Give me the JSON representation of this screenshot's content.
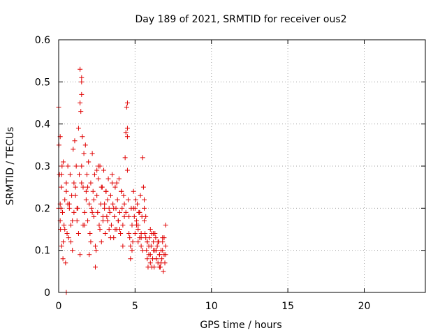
{
  "chart_data": {
    "type": "scatter",
    "title": "Day 189 of 2021, SRMTID for receiver ous2",
    "xlabel": "GPS time / hours",
    "ylabel": "SRMTID / TECUs",
    "xlim": [
      0,
      24
    ],
    "ylim": [
      0,
      0.6
    ],
    "x_ticks": [
      0,
      5,
      10,
      15,
      20
    ],
    "x_tick_labels": [
      "0",
      "5",
      "10",
      "15",
      "20"
    ],
    "y_ticks": [
      0,
      0.1,
      0.2,
      0.3,
      0.4,
      0.5,
      0.6
    ],
    "y_tick_labels": [
      "0",
      "0.1",
      "0.2",
      "0.3",
      "0.4",
      "0.5",
      "0.6"
    ],
    "grid": true,
    "marker": "+",
    "color": "#e00000",
    "series": [
      {
        "name": "SRMTID",
        "x": [
          0.0,
          0.02,
          0.05,
          0.1,
          0.1,
          0.12,
          0.15,
          0.18,
          0.2,
          0.22,
          0.25,
          0.28,
          0.3,
          0.35,
          0.4,
          0.45,
          0.5,
          0.55,
          0.6,
          0.65,
          0.7,
          0.75,
          0.8,
          0.85,
          0.9,
          0.95,
          1.0,
          1.05,
          1.1,
          1.15,
          1.2,
          1.25,
          1.3,
          1.35,
          1.4,
          1.4,
          1.45,
          1.5,
          1.5,
          1.55,
          1.6,
          1.65,
          1.7,
          1.75,
          1.8,
          1.85,
          1.9,
          1.95,
          2.0,
          2.05,
          2.1,
          2.15,
          2.2,
          2.25,
          2.3,
          2.35,
          2.4,
          2.45,
          2.5,
          2.55,
          2.6,
          2.65,
          2.7,
          2.75,
          2.8,
          2.85,
          2.9,
          2.95,
          3.0,
          3.05,
          3.1,
          3.15,
          3.2,
          3.25,
          3.3,
          3.35,
          3.4,
          3.45,
          3.5,
          3.55,
          3.6,
          3.65,
          3.7,
          3.75,
          3.8,
          3.85,
          3.9,
          3.95,
          4.0,
          4.05,
          4.1,
          4.15,
          4.2,
          4.25,
          4.3,
          4.35,
          4.4,
          4.45,
          4.5,
          4.5,
          4.55,
          4.6,
          4.65,
          4.7,
          4.75,
          4.8,
          4.85,
          4.9,
          4.95,
          5.0,
          5.05,
          5.1,
          5.15,
          5.2,
          5.25,
          5.3,
          5.35,
          5.4,
          5.45,
          5.5,
          5.55,
          5.6,
          5.65,
          5.7,
          5.75,
          5.8,
          5.85,
          5.9,
          5.95,
          6.0,
          6.05,
          6.1,
          6.15,
          6.2,
          6.25,
          6.3,
          6.35,
          6.4,
          6.45,
          6.5,
          6.55,
          6.6,
          6.65,
          6.7,
          6.75,
          6.8,
          6.85,
          6.9,
          6.95,
          7.0,
          7.0,
          6.9,
          6.8,
          6.7,
          6.6,
          6.5,
          6.4,
          6.3,
          6.2,
          6.1,
          6.0,
          5.9,
          5.8,
          5.7,
          5.6,
          5.5,
          5.4,
          5.3,
          5.2,
          5.1,
          4.9,
          4.7,
          4.3,
          4.1,
          3.9,
          3.7,
          3.5,
          3.3,
          3.1,
          2.9,
          2.7,
          2.5,
          2.3,
          2.1,
          1.9,
          1.7,
          1.5,
          1.3,
          1.1,
          0.9,
          0.7,
          0.5,
          0.3,
          0.1,
          0.0,
          0.2,
          0.4,
          0.6,
          0.8,
          1.0,
          1.2,
          1.4,
          1.6,
          1.8,
          2.0,
          2.2,
          2.4,
          2.6,
          2.8,
          3.0,
          3.2,
          3.4,
          3.6,
          3.8,
          4.0,
          4.2,
          4.4,
          4.6,
          4.8,
          5.0,
          5.2,
          5.4,
          5.6,
          5.8,
          6.0,
          6.2,
          6.4,
          6.6,
          6.8,
          7.0,
          1.5,
          1.5,
          4.5,
          4.5,
          0.5
        ],
        "y": [
          0.44,
          0.35,
          0.28,
          0.21,
          0.37,
          0.15,
          0.2,
          0.25,
          0.11,
          0.3,
          0.19,
          0.08,
          0.31,
          0.16,
          0.22,
          0.07,
          0.26,
          0.14,
          0.3,
          0.13,
          0.21,
          0.28,
          0.16,
          0.23,
          0.1,
          0.34,
          0.19,
          0.36,
          0.25,
          0.3,
          0.17,
          0.2,
          0.39,
          0.28,
          0.45,
          0.53,
          0.43,
          0.5,
          0.3,
          0.37,
          0.25,
          0.33,
          0.19,
          0.35,
          0.22,
          0.28,
          0.17,
          0.31,
          0.21,
          0.14,
          0.26,
          0.2,
          0.33,
          0.24,
          0.18,
          0.28,
          0.06,
          0.1,
          0.23,
          0.19,
          0.27,
          0.16,
          0.3,
          0.21,
          0.12,
          0.25,
          0.17,
          0.29,
          0.2,
          0.14,
          0.24,
          0.18,
          0.22,
          0.27,
          0.15,
          0.19,
          0.23,
          0.16,
          0.28,
          0.21,
          0.13,
          0.18,
          0.25,
          0.2,
          0.15,
          0.22,
          0.17,
          0.27,
          0.19,
          0.14,
          0.24,
          0.2,
          0.16,
          0.23,
          0.18,
          0.32,
          0.38,
          0.44,
          0.29,
          0.37,
          0.22,
          0.18,
          0.13,
          0.08,
          0.2,
          0.16,
          0.12,
          0.24,
          0.18,
          0.14,
          0.22,
          0.17,
          0.21,
          0.15,
          0.19,
          0.13,
          0.23,
          0.11,
          0.18,
          0.32,
          0.25,
          0.2,
          0.14,
          0.18,
          0.1,
          0.12,
          0.06,
          0.09,
          0.13,
          0.07,
          0.11,
          0.14,
          0.08,
          0.12,
          0.06,
          0.1,
          0.13,
          0.08,
          0.11,
          0.07,
          0.12,
          0.09,
          0.06,
          0.1,
          0.08,
          0.12,
          0.05,
          0.09,
          0.07,
          0.11,
          0.16,
          0.13,
          0.1,
          0.07,
          0.09,
          0.12,
          0.08,
          0.14,
          0.1,
          0.06,
          0.15,
          0.11,
          0.08,
          0.13,
          0.17,
          0.1,
          0.14,
          0.19,
          0.12,
          0.16,
          0.2,
          0.11,
          0.21,
          0.24,
          0.17,
          0.15,
          0.26,
          0.2,
          0.24,
          0.18,
          0.15,
          0.29,
          0.22,
          0.12,
          0.25,
          0.16,
          0.26,
          0.14,
          0.23,
          0.17,
          0.2,
          0.24,
          0.12,
          0.17,
          0.2,
          0.28,
          0.15,
          0.21,
          0.12,
          0.26,
          0.2,
          0.09,
          0.16,
          0.24,
          0.09,
          0.19,
          0.11,
          0.3,
          0.25,
          0.21,
          0.17,
          0.13,
          0.2,
          0.26,
          0.15,
          0.11,
          0.19,
          0.14,
          0.1,
          0.2,
          0.16,
          0.13,
          0.22,
          0.12,
          0.09,
          0.14,
          0.1,
          0.06,
          0.13,
          0.09,
          0.51,
          0.47,
          0.45,
          0.39,
          0.0
        ]
      }
    ]
  }
}
